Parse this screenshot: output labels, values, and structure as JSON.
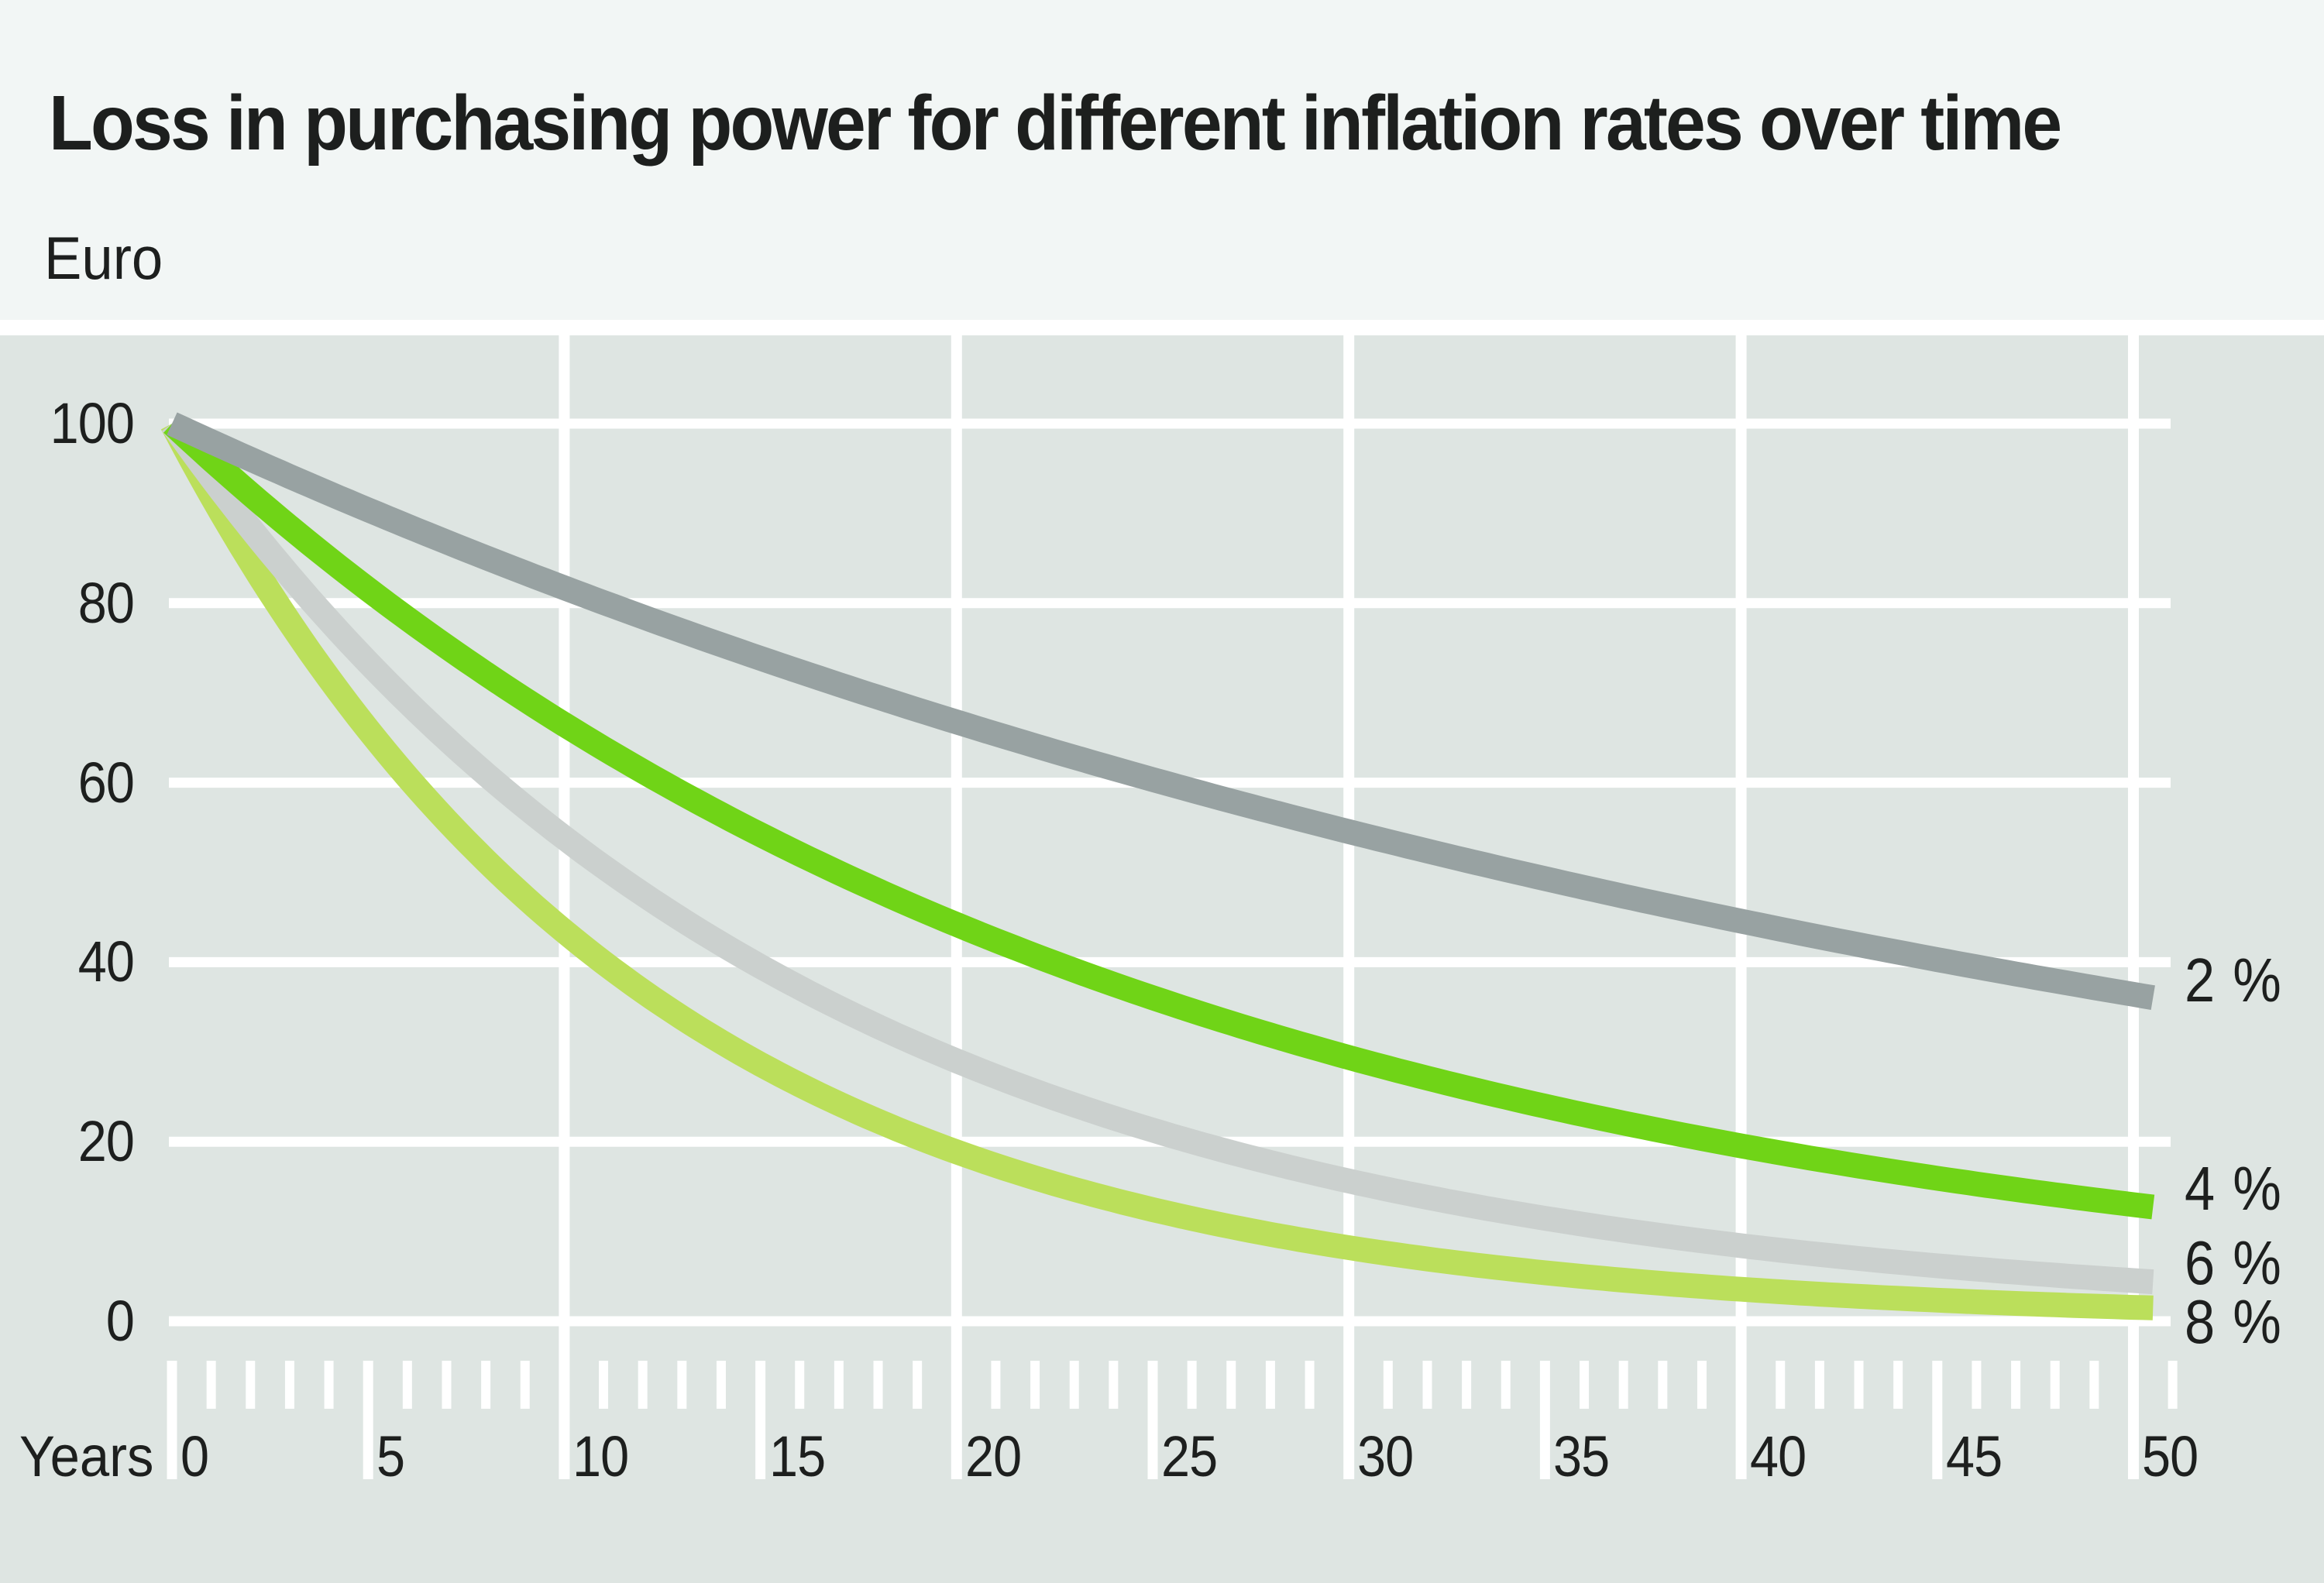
{
  "title": "Loss in purchasing power for different inflation rates over time",
  "unit_label": "Euro",
  "x_axis_label": "Years",
  "colors": {
    "header_background": "#f2f6f5",
    "panel_background": "#dee5e2",
    "separator": "#ffffff",
    "gridline": "#ffffff",
    "text": "#1d1f1e"
  },
  "chart_data": {
    "type": "line",
    "title": "Loss in purchasing power for different inflation rates over time",
    "ylabel": "Euro",
    "xlabel": "Years",
    "grid": "on",
    "legend_position": "right-of-line-ends",
    "x": {
      "min": 0,
      "max": 50,
      "major_tick_step": 5,
      "minor_tick_step": 1,
      "vertical_gridline_step": 10,
      "ruler_extra_tick_year": 51
    },
    "y": {
      "min": 0,
      "max": 100,
      "tick_step": 20
    },
    "x_tick_values": [
      0,
      5,
      10,
      15,
      20,
      25,
      30,
      35,
      40,
      45,
      50
    ],
    "x_tick_labels": [
      "0",
      "5",
      "10",
      "15",
      "20",
      "25",
      "30",
      "35",
      "40",
      "45",
      "50"
    ],
    "y_tick_values": [
      100,
      80,
      60,
      40,
      20,
      0
    ],
    "y_tick_labels": [
      "100",
      "80",
      "60",
      "40",
      "20",
      "0"
    ],
    "sample_years": [
      0,
      5,
      10,
      15,
      20,
      25,
      30,
      35,
      40,
      45,
      50
    ],
    "series": [
      {
        "label": "8 %",
        "rate_percent": 8,
        "color": "#bbdf5b",
        "values": [
          100,
          65.9,
          43.4,
          28.6,
          18.9,
          12.4,
          8.2,
          5.4,
          3.6,
          2.4,
          1.5
        ]
      },
      {
        "label": "6 %",
        "rate_percent": 6,
        "color": "#cbd0ce",
        "values": [
          100,
          73.4,
          53.9,
          39.6,
          29.0,
          21.3,
          15.6,
          11.5,
          8.4,
          6.2,
          4.5
        ]
      },
      {
        "label": "4 %",
        "rate_percent": 4,
        "color": "#70d417",
        "values": [
          100,
          81.5,
          66.5,
          54.2,
          44.2,
          36.0,
          29.4,
          24.0,
          19.5,
          15.9,
          13.0
        ]
      },
      {
        "label": "2 %",
        "rate_percent": 2,
        "color": "#98a2a2",
        "values": [
          100,
          90.4,
          81.7,
          73.9,
          66.8,
          60.3,
          54.5,
          49.3,
          44.6,
          40.3,
          36.4
        ]
      }
    ]
  }
}
